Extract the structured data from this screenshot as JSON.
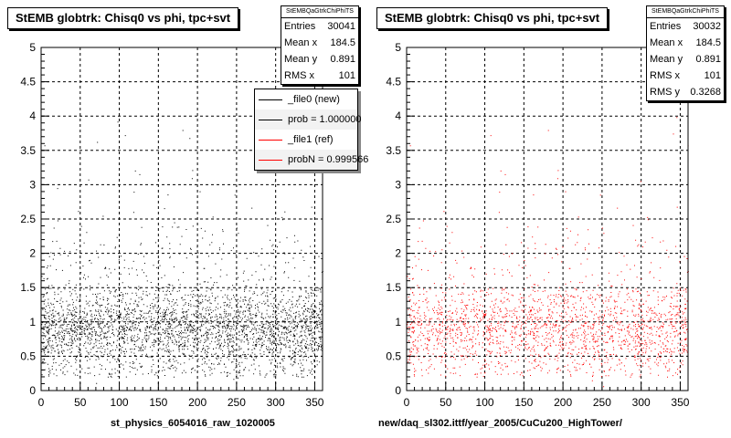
{
  "chart_data": [
    {
      "type": "scatter",
      "title": "StEMB globtrk: Chisq0 vs phi, tpc+svt",
      "xlabel": "st_physics_6054016_raw_1020005",
      "xlim": [
        0,
        360
      ],
      "ylim": [
        0,
        5
      ],
      "xticks": [
        "0",
        "50",
        "100",
        "150",
        "200",
        "250",
        "300",
        "350"
      ],
      "yticks": [
        "0",
        "0.5",
        "1",
        "1.5",
        "2",
        "2.5",
        "3",
        "3.5",
        "4",
        "4.5",
        "5"
      ],
      "grid": true,
      "marker_color": "#000000",
      "density_profile": {
        "y_center": 0.9,
        "y_spread": 0.28,
        "dense_band": [
          0.2,
          1.5
        ],
        "n_points": 30041
      },
      "stats": {
        "name": "StEMBQaGtrkChiPhiTS",
        "rows": [
          {
            "label": "Entries",
            "value": "30041"
          },
          {
            "label": "Mean x",
            "value": "184.5"
          },
          {
            "label": "Mean y",
            "value": "0.891"
          },
          {
            "label": "RMS x",
            "value": "101"
          }
        ]
      },
      "legend": {
        "placement": "top-right",
        "entries": [
          {
            "label": "_file0 (new)",
            "color": "#000000"
          },
          {
            "label": "prob = 1.000000",
            "color": "#000000"
          },
          {
            "label": "_file1 (ref)",
            "color": "#ff0000"
          },
          {
            "label": "probN = 0.999566",
            "color": "#ff0000"
          }
        ]
      }
    },
    {
      "type": "scatter",
      "title": "StEMB globtrk: Chisq0 vs phi, tpc+svt",
      "xlabel": "new/daq_sl302.ittf/year_2005/CuCu200_HighTower/",
      "xlim": [
        0,
        360
      ],
      "ylim": [
        0,
        5
      ],
      "xticks": [
        "0",
        "50",
        "100",
        "150",
        "200",
        "250",
        "300",
        "350"
      ],
      "yticks": [
        "0",
        "0.5",
        "1",
        "1.5",
        "2",
        "2.5",
        "3",
        "3.5",
        "4",
        "4.5",
        "5"
      ],
      "grid": true,
      "marker_color": "#ff0000",
      "density_profile": {
        "y_center": 0.891,
        "y_spread": 0.3268,
        "dense_band": [
          0.2,
          1.5
        ],
        "n_points": 30032
      },
      "stats": {
        "name": "StEMBQaGtrkChiPhiTS",
        "rows": [
          {
            "label": "Entries",
            "value": "30032"
          },
          {
            "label": "Mean x",
            "value": "184.5"
          },
          {
            "label": "Mean y",
            "value": "0.891"
          },
          {
            "label": "RMS x",
            "value": "101"
          },
          {
            "label": "RMS y",
            "value": "0.3268"
          }
        ]
      }
    }
  ]
}
